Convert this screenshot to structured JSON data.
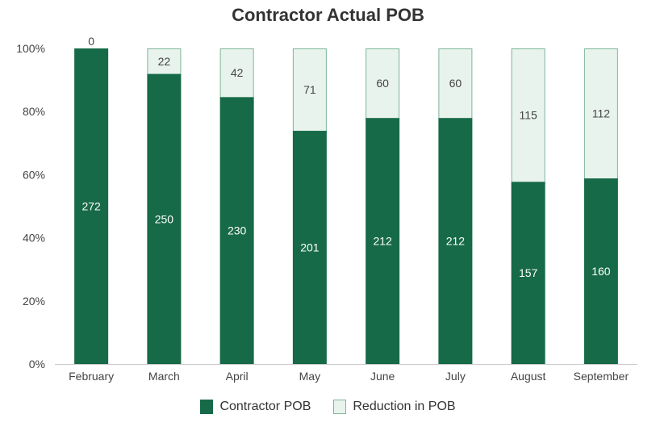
{
  "chart_data": {
    "type": "bar",
    "stacked": "percent",
    "title": "Contractor Actual POB",
    "xlabel": "",
    "ylabel": "",
    "categories": [
      "February",
      "March",
      "April",
      "May",
      "June",
      "July",
      "August",
      "September"
    ],
    "series": [
      {
        "name": "Contractor POB",
        "color": "#166a48",
        "values": [
          272,
          250,
          230,
          201,
          212,
          212,
          157,
          160
        ]
      },
      {
        "name": "Reduction in POB",
        "color": "#e8f3ed",
        "border": "#7fb59a",
        "values": [
          0,
          22,
          42,
          71,
          60,
          60,
          115,
          112
        ]
      }
    ],
    "yticks": [
      "0%",
      "20%",
      "40%",
      "60%",
      "80%",
      "100%"
    ],
    "ylim": [
      0,
      100
    ],
    "grid": false,
    "legend": "bottom-center"
  }
}
